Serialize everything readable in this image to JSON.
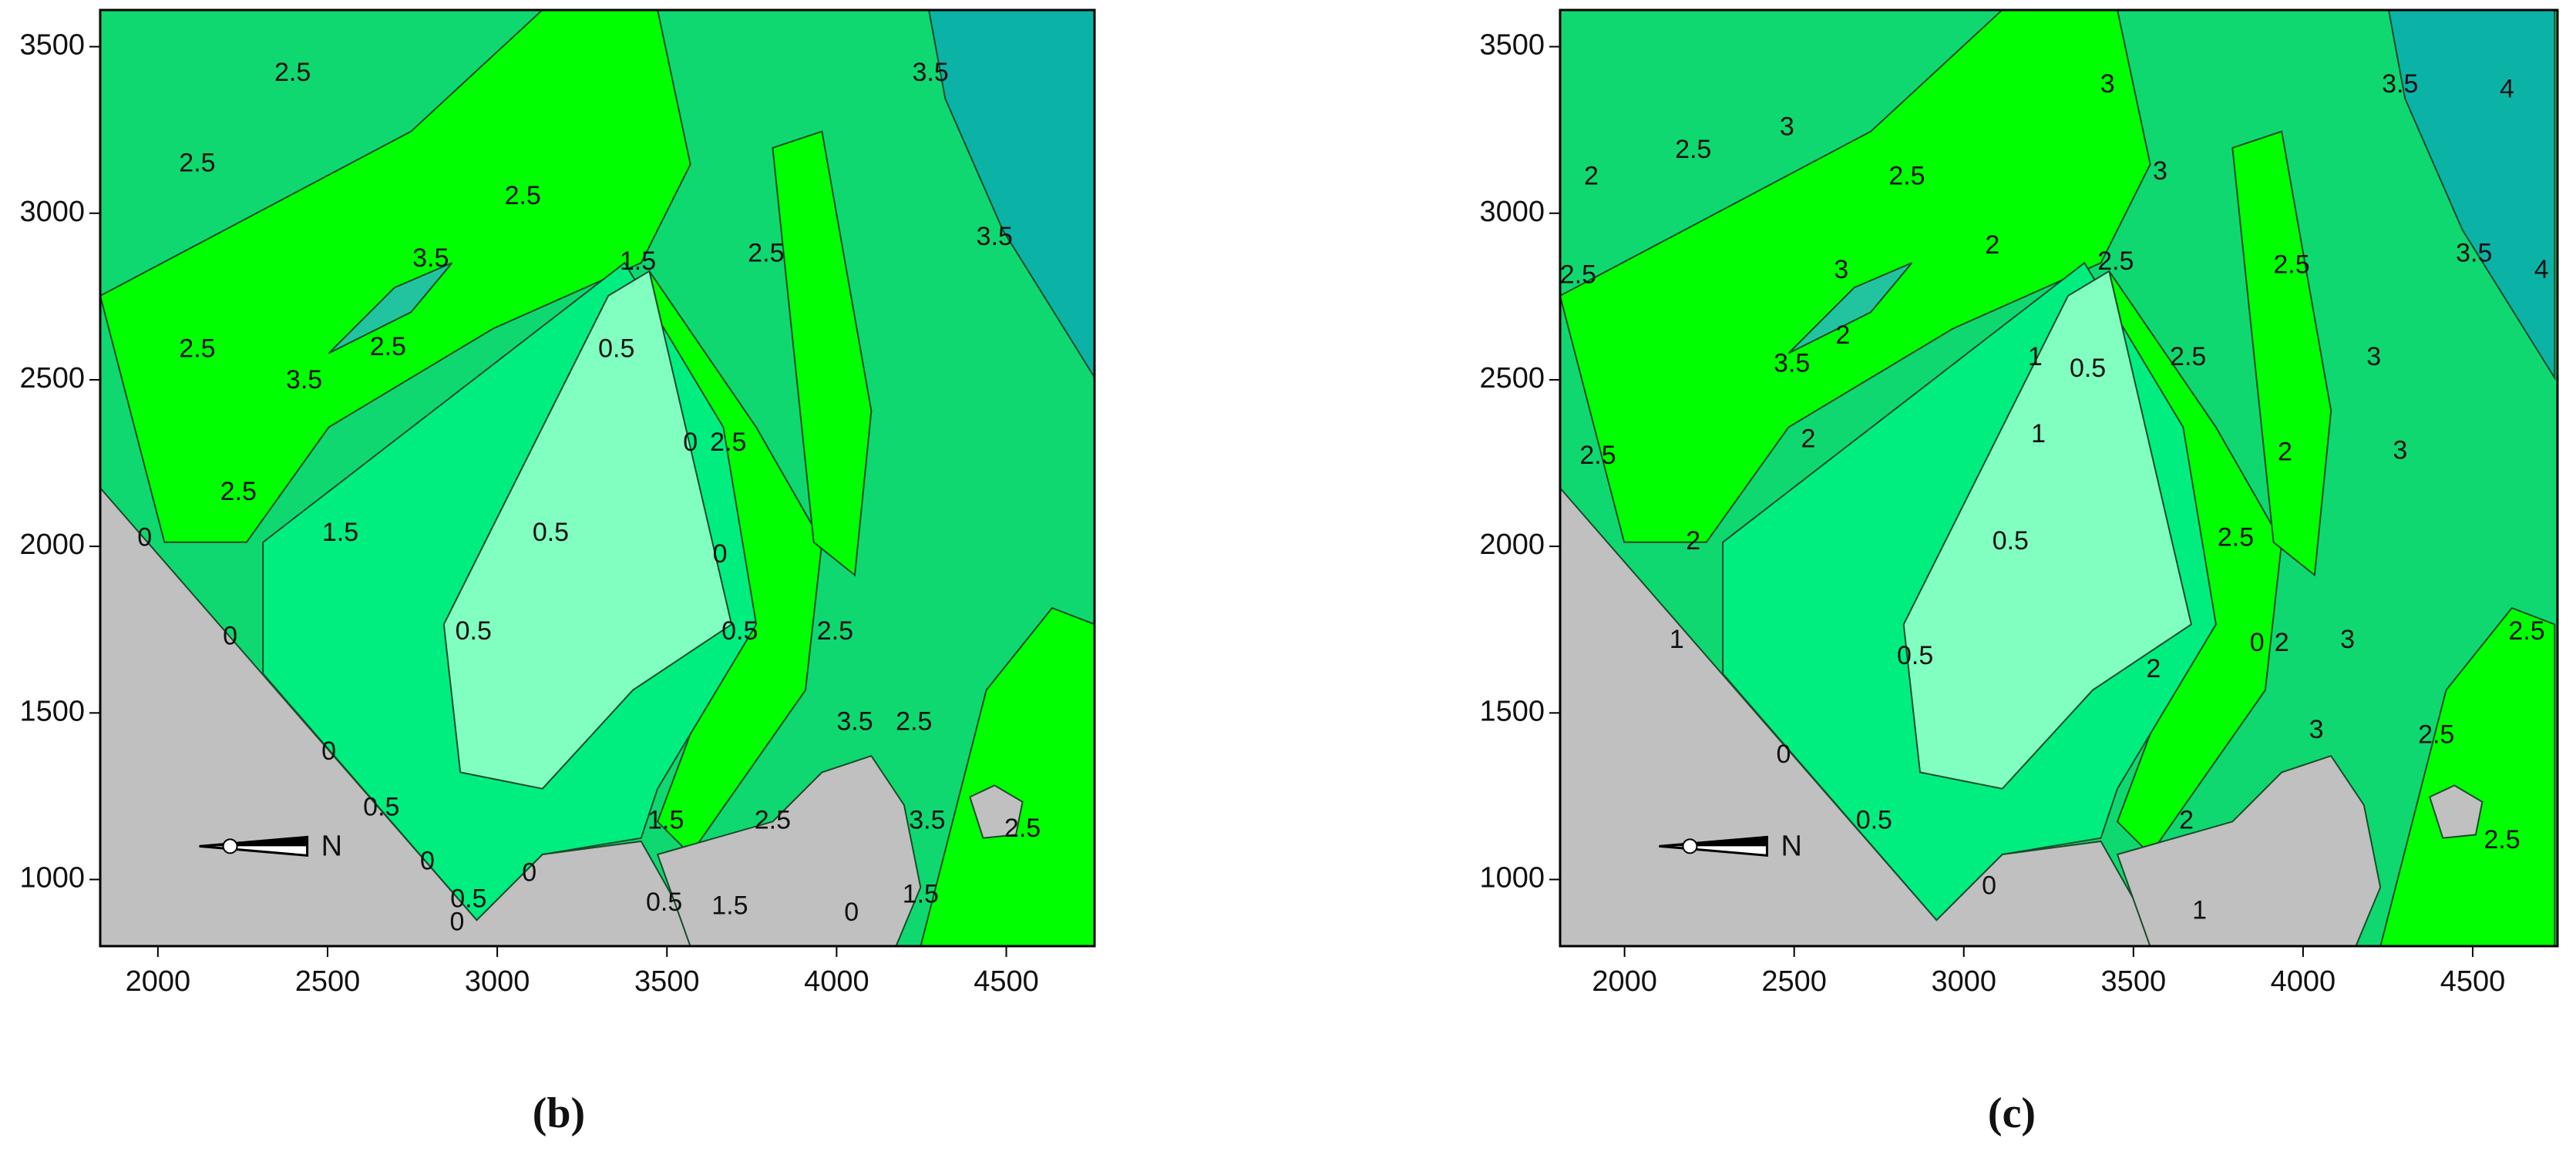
{
  "chart_data": [
    {
      "type": "contour",
      "panel_label": "(b)",
      "compass_label": "N",
      "xlim": [
        1830,
        4760
      ],
      "ylim": [
        800,
        3610
      ],
      "xticks": [
        2000,
        2500,
        3000,
        3500,
        4000,
        4500
      ],
      "yticks": [
        1000,
        1500,
        2000,
        2500,
        3000,
        3500
      ],
      "contour_labels": [
        2.5,
        2.5,
        2.5,
        3.5,
        3.5,
        3.5,
        1.5,
        2.5,
        2.5,
        3.5,
        2.5,
        0.5,
        0,
        2.5,
        2.5,
        1.5,
        0.5,
        0,
        0,
        0,
        0.5,
        0.5,
        2.5,
        3.5,
        2.5,
        0,
        0.5,
        2.5,
        1.5,
        3.5,
        2.5,
        0,
        0,
        0.5,
        0,
        1.5,
        0.5,
        0,
        1.5
      ]
    },
    {
      "type": "contour",
      "panel_label": "(c)",
      "compass_label": "N",
      "xlim": [
        1810,
        4750
      ],
      "ylim": [
        800,
        3610
      ],
      "xticks": [
        2000,
        2500,
        3000,
        3500,
        4000,
        4500
      ],
      "yticks": [
        1000,
        1500,
        2000,
        2500,
        3000,
        3500
      ],
      "contour_labels": [
        3,
        2,
        2.5,
        2.5,
        3,
        3.5,
        4,
        3,
        2,
        3.5,
        4,
        2.5,
        2.5,
        2.5,
        3,
        2,
        1,
        0.5,
        2.5,
        3,
        3.5,
        2,
        1,
        2.5,
        2,
        3,
        2,
        0.5,
        2.5,
        1,
        0.5,
        0,
        2,
        3,
        2.5,
        0,
        3,
        2.5,
        2,
        0.5,
        0,
        2,
        1,
        2.5
      ]
    }
  ]
}
